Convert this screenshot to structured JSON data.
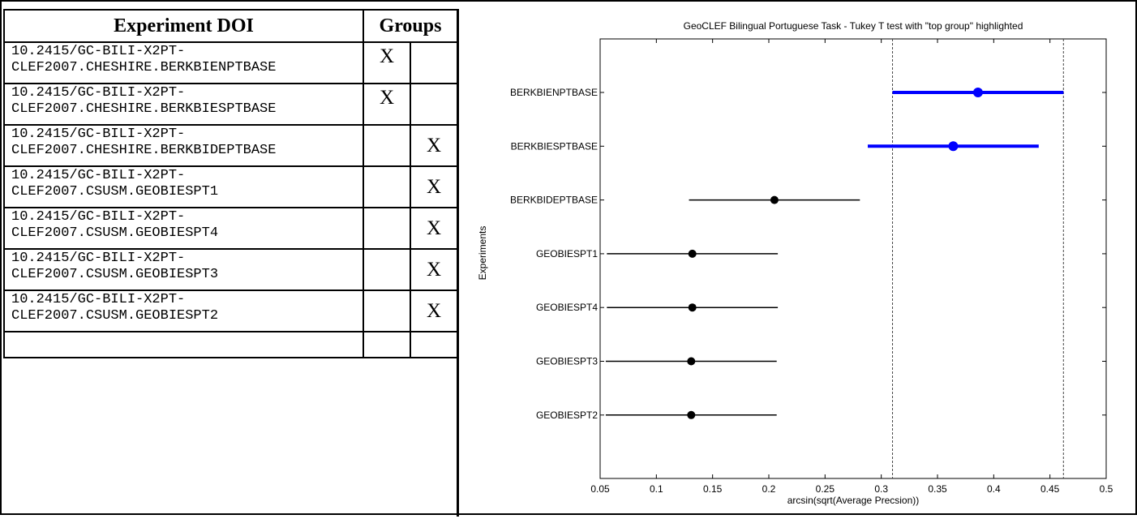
{
  "table": {
    "header_doi": "Experiment DOI",
    "header_groups": "Groups",
    "rows": [
      {
        "doi_line1": "10.2415/GC-BILI-X2PT-",
        "doi_line2": "CLEF2007.CHESHIRE.BERKBIENPTBASE",
        "group1": "X",
        "group2": ""
      },
      {
        "doi_line1": "10.2415/GC-BILI-X2PT-",
        "doi_line2": "CLEF2007.CHESHIRE.BERKBIESPTBASE",
        "group1": "X",
        "group2": ""
      },
      {
        "doi_line1": "10.2415/GC-BILI-X2PT-",
        "doi_line2": "CLEF2007.CHESHIRE.BERKBIDEPTBASE",
        "group1": "",
        "group2": "X"
      },
      {
        "doi_line1": "10.2415/GC-BILI-X2PT-",
        "doi_line2": "CLEF2007.CSUSM.GEOBIESPT1",
        "group1": "",
        "group2": "X"
      },
      {
        "doi_line1": "10.2415/GC-BILI-X2PT-",
        "doi_line2": "CLEF2007.CSUSM.GEOBIESPT4",
        "group1": "",
        "group2": "X"
      },
      {
        "doi_line1": "10.2415/GC-BILI-X2PT-",
        "doi_line2": "CLEF2007.CSUSM.GEOBIESPT3",
        "group1": "",
        "group2": "X"
      },
      {
        "doi_line1": "10.2415/GC-BILI-X2PT-",
        "doi_line2": "CLEF2007.CSUSM.GEOBIESPT2",
        "group1": "",
        "group2": "X"
      }
    ]
  },
  "chart_data": {
    "type": "scatter",
    "title": "GeoCLEF Bilingual Portuguese Task - Tukey T test with \"top group\" highlighted",
    "xlabel": "arcsin(sqrt(Average Precsion))",
    "ylabel": "Experiments",
    "xlim": [
      0.05,
      0.5
    ],
    "xticks": [
      0.05,
      0.1,
      0.15,
      0.2,
      0.25,
      0.3,
      0.35,
      0.4,
      0.45,
      0.5
    ],
    "xtick_labels": [
      "0.05",
      "0.1",
      "0.15",
      "0.2",
      "0.25",
      "0.3",
      "0.35",
      "0.4",
      "0.45",
      "0.5"
    ],
    "grid": false,
    "reference_lines_x": [
      0.31,
      0.462
    ],
    "top_group_color": "#0000ff",
    "other_color": "#000000",
    "experiments": [
      {
        "label": "BERKBIENPTBASE",
        "mean": 0.386,
        "lower": 0.31,
        "upper": 0.462,
        "top_group": true
      },
      {
        "label": "BERKBIESPTBASE",
        "mean": 0.364,
        "lower": 0.288,
        "upper": 0.44,
        "top_group": true
      },
      {
        "label": "BERKBIDEPTBASE",
        "mean": 0.205,
        "lower": 0.129,
        "upper": 0.281,
        "top_group": false
      },
      {
        "label": "GEOBIESPT1",
        "mean": 0.132,
        "lower": 0.056,
        "upper": 0.208,
        "top_group": false
      },
      {
        "label": "GEOBIESPT4",
        "mean": 0.132,
        "lower": 0.056,
        "upper": 0.208,
        "top_group": false
      },
      {
        "label": "GEOBIESPT3",
        "mean": 0.131,
        "lower": 0.055,
        "upper": 0.207,
        "top_group": false
      },
      {
        "label": "GEOBIESPT2",
        "mean": 0.131,
        "lower": 0.055,
        "upper": 0.207,
        "top_group": false
      }
    ]
  }
}
